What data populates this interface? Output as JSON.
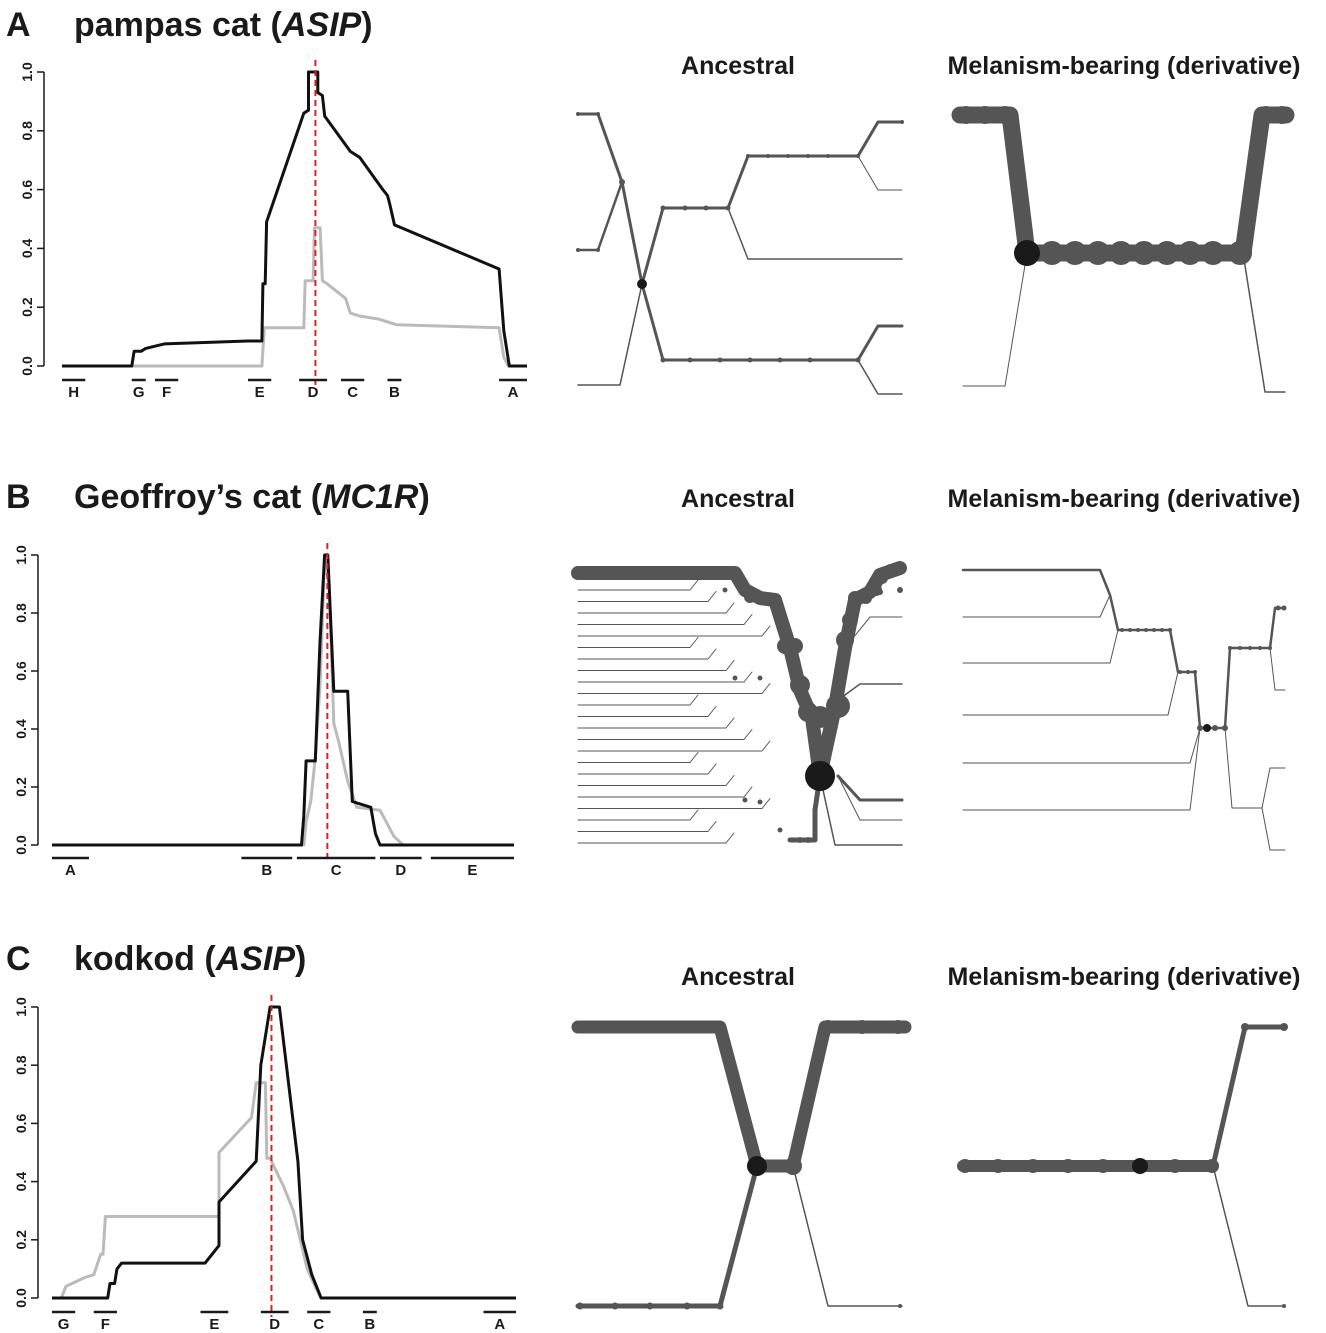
{
  "panels": [
    {
      "letter": "A",
      "species": "pampas cat",
      "gene": "ASIP",
      "left_title": "Ancestral",
      "right_title": "Melanism-bearing (derivative)"
    },
    {
      "letter": "B",
      "species": "Geoffroy’s cat",
      "gene": "MC1R",
      "left_title": "Ancestral",
      "right_title": "Melanism-bearing (derivative)"
    },
    {
      "letter": "C",
      "species": "kodkod",
      "gene": "ASIP",
      "left_title": "Ancestral",
      "right_title": "Melanism-bearing (derivative)"
    }
  ],
  "chart_data": [
    {
      "type": "line",
      "panel": "A",
      "ylim": [
        0,
        1
      ],
      "yticks": [
        "0.0",
        "0.2",
        "0.4",
        "0.6",
        "0.8",
        "1.0"
      ],
      "x_range": [
        0,
        100
      ],
      "colors": {
        "black_series": "#111111",
        "grey_series": "#bbbbbb",
        "marker": "#e02020"
      },
      "series": [
        {
          "color": "#111111",
          "points": [
            [
              0,
              0
            ],
            [
              15,
              0
            ],
            [
              15.5,
              0.05
            ],
            [
              17,
              0.05
            ],
            [
              18,
              0.06
            ],
            [
              22,
              0.075
            ],
            [
              40,
              0.085
            ],
            [
              43,
              0.085
            ],
            [
              43.2,
              0.28
            ],
            [
              43.7,
              0.28
            ],
            [
              44,
              0.49
            ],
            [
              52,
              0.86
            ],
            [
              53,
              0.87
            ],
            [
              53,
              1.0
            ],
            [
              55,
              1.0
            ],
            [
              55,
              0.93
            ],
            [
              56,
              0.92
            ],
            [
              56.5,
              0.85
            ],
            [
              62,
              0.73
            ],
            [
              64,
              0.71
            ],
            [
              69,
              0.6
            ],
            [
              70,
              0.58
            ],
            [
              70.5,
              0.55
            ],
            [
              71.5,
              0.48
            ],
            [
              94,
              0.33
            ],
            [
              95,
              0.12
            ],
            [
              96,
              0.02
            ],
            [
              96.2,
              0
            ],
            [
              100,
              0
            ]
          ]
        },
        {
          "color": "#bbbbbb",
          "points": [
            [
              0,
              0
            ],
            [
              43,
              0
            ],
            [
              43.5,
              0.13
            ],
            [
              52,
              0.13
            ],
            [
              52.3,
              0.29
            ],
            [
              54,
              0.29
            ],
            [
              54.3,
              0.47
            ],
            [
              55.5,
              0.47
            ],
            [
              56,
              0.29
            ],
            [
              57,
              0.28
            ],
            [
              61,
              0.23
            ],
            [
              62,
              0.18
            ],
            [
              64,
              0.17
            ],
            [
              68,
              0.16
            ],
            [
              72,
              0.14
            ],
            [
              94,
              0.13
            ],
            [
              95,
              0.03
            ],
            [
              96,
              0
            ],
            [
              100,
              0
            ]
          ]
        }
      ],
      "marker_x": 54.5,
      "regions": [
        {
          "label": "H",
          "start": 0,
          "end": 5
        },
        {
          "label": "G",
          "start": 15,
          "end": 18
        },
        {
          "label": "F",
          "start": 20,
          "end": 25
        },
        {
          "label": "E",
          "start": 40,
          "end": 45
        },
        {
          "label": "D",
          "start": 51,
          "end": 57
        },
        {
          "label": "C",
          "start": 60,
          "end": 65
        },
        {
          "label": "B",
          "start": 70,
          "end": 73
        },
        {
          "label": "A",
          "start": 94,
          "end": 100
        }
      ]
    },
    {
      "type": "line",
      "panel": "B",
      "ylim": [
        0,
        1
      ],
      "yticks": [
        "0.0",
        "0.2",
        "0.4",
        "0.6",
        "0.8",
        "1.0"
      ],
      "x_range": [
        0,
        100
      ],
      "colors": {
        "black_series": "#111111",
        "grey_series": "#bbbbbb",
        "marker": "#e02020"
      },
      "series": [
        {
          "color": "#111111",
          "points": [
            [
              0,
              0
            ],
            [
              54,
              0
            ],
            [
              54.5,
              0.1
            ],
            [
              55,
              0.29
            ],
            [
              57,
              0.29
            ],
            [
              58,
              0.7
            ],
            [
              59,
              1.0
            ],
            [
              59.7,
              1.0
            ],
            [
              61,
              0.53
            ],
            [
              64,
              0.53
            ],
            [
              65,
              0.15
            ],
            [
              69,
              0.13
            ],
            [
              70,
              0.04
            ],
            [
              71,
              0
            ],
            [
              100,
              0
            ]
          ]
        },
        {
          "color": "#bbbbbb",
          "points": [
            [
              0,
              0
            ],
            [
              54.5,
              0
            ],
            [
              55,
              0.08
            ],
            [
              56,
              0.15
            ],
            [
              57,
              0.3
            ],
            [
              58,
              0.55
            ],
            [
              59,
              0.98
            ],
            [
              60,
              0.9
            ],
            [
              61,
              0.42
            ],
            [
              62,
              0.36
            ],
            [
              64,
              0.22
            ],
            [
              66,
              0.13
            ],
            [
              71,
              0.12
            ],
            [
              74,
              0.03
            ],
            [
              76,
              0
            ],
            [
              100,
              0
            ]
          ]
        }
      ],
      "marker_x": 59.6,
      "regions": [
        {
          "label": "A",
          "start": 0,
          "end": 8
        },
        {
          "label": "B",
          "start": 41,
          "end": 52
        },
        {
          "label": "C",
          "start": 53,
          "end": 70
        },
        {
          "label": "D",
          "start": 71,
          "end": 80
        },
        {
          "label": "E",
          "start": 82,
          "end": 100
        }
      ]
    },
    {
      "type": "line",
      "panel": "C",
      "ylim": [
        0,
        1
      ],
      "yticks": [
        "0.0",
        "0.2",
        "0.4",
        "0.6",
        "0.8",
        "1.0"
      ],
      "x_range": [
        0,
        100
      ],
      "colors": {
        "black_series": "#111111",
        "grey_series": "#bbbbbb",
        "marker": "#e02020"
      },
      "series": [
        {
          "color": "#111111",
          "points": [
            [
              0,
              0
            ],
            [
              12,
              0
            ],
            [
              12.5,
              0.05
            ],
            [
              13.5,
              0.05
            ],
            [
              14,
              0.1
            ],
            [
              15,
              0.12
            ],
            [
              33,
              0.12
            ],
            [
              36,
              0.18
            ],
            [
              36,
              0.33
            ],
            [
              44,
              0.47
            ],
            [
              45,
              0.8
            ],
            [
              47,
              1.0
            ],
            [
              49,
              1.0
            ],
            [
              53,
              0.47
            ],
            [
              54,
              0.2
            ],
            [
              56,
              0.08
            ],
            [
              57,
              0.04
            ],
            [
              58,
              0
            ],
            [
              100,
              0
            ]
          ]
        },
        {
          "color": "#bbbbbb",
          "points": [
            [
              0,
              0
            ],
            [
              2,
              0
            ],
            [
              3,
              0.04
            ],
            [
              7,
              0.07
            ],
            [
              9,
              0.08
            ],
            [
              10.5,
              0.15
            ],
            [
              11,
              0.15
            ],
            [
              11.5,
              0.28
            ],
            [
              36,
              0.28
            ],
            [
              36,
              0.5
            ],
            [
              43,
              0.62
            ],
            [
              44,
              0.74
            ],
            [
              46,
              0.74
            ],
            [
              46.3,
              0.48
            ],
            [
              47,
              0.48
            ],
            [
              50,
              0.38
            ],
            [
              52,
              0.3
            ],
            [
              55,
              0.1
            ],
            [
              57,
              0.03
            ],
            [
              58,
              0
            ],
            [
              100,
              0
            ]
          ]
        }
      ],
      "marker_x": 47.3,
      "regions": [
        {
          "label": "G",
          "start": 0,
          "end": 5
        },
        {
          "label": "F",
          "start": 9,
          "end": 14
        },
        {
          "label": "E",
          "start": 32,
          "end": 38
        },
        {
          "label": "D",
          "start": 45,
          "end": 51
        },
        {
          "label": "C",
          "start": 55,
          "end": 60
        },
        {
          "label": "B",
          "start": 67,
          "end": 70
        },
        {
          "label": "A",
          "start": 93,
          "end": 100
        }
      ]
    }
  ],
  "colors": {
    "network": "#555555",
    "focal_node": "#1a1a1a",
    "text": "#1a1a1a"
  }
}
